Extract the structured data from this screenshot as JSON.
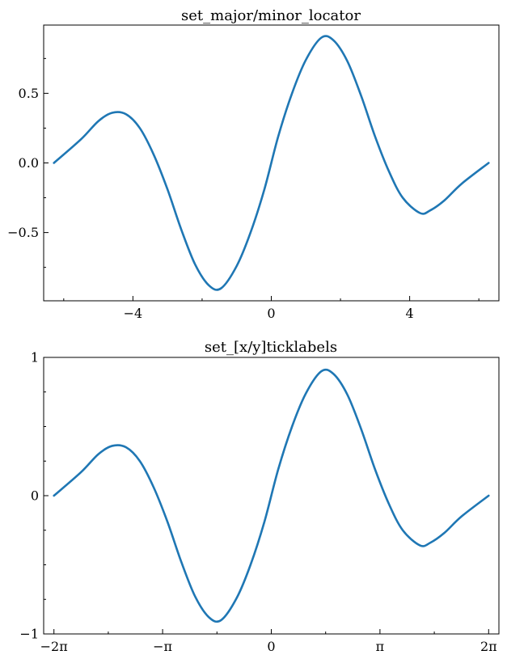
{
  "chart_data": [
    {
      "type": "line",
      "title": "set_major/minor_locator",
      "xlabel": "",
      "ylabel": "",
      "xlim": [
        -6.58,
        6.58
      ],
      "ylim": [
        -0.99,
        0.99
      ],
      "grid": false,
      "xticks_major": [
        {
          "value": -4,
          "label": "−4"
        },
        {
          "value": 0,
          "label": "0"
        },
        {
          "value": 4,
          "label": "4"
        }
      ],
      "xticks_minor": [
        -6,
        -2,
        2,
        6
      ],
      "yticks_major": [
        {
          "value": 0.5,
          "label": "0.5"
        },
        {
          "value": 0.0,
          "label": "0.0"
        },
        {
          "value": -0.5,
          "label": "−0.5"
        }
      ],
      "yticks_minor": [
        0.75,
        0.25,
        -0.25,
        -0.75
      ],
      "series": [
        {
          "color": "#1f77b4",
          "x": [
            -6.283,
            -5.5,
            -5.0,
            -4.6,
            -4.2,
            -3.8,
            -3.4,
            -3.0,
            -2.6,
            -2.2,
            -1.8,
            -1.45,
            -1.0,
            -0.6,
            -0.2,
            0.2,
            0.6,
            1.0,
            1.45,
            1.8,
            2.2,
            2.6,
            3.0,
            3.4,
            3.8,
            4.3,
            4.6,
            5.0,
            5.5,
            6.283
          ],
          "y": [
            0.0,
            0.17,
            0.3,
            0.36,
            0.35,
            0.25,
            0.06,
            -0.19,
            -0.48,
            -0.73,
            -0.88,
            -0.9,
            -0.74,
            -0.5,
            -0.19,
            0.19,
            0.5,
            0.74,
            0.9,
            0.88,
            0.73,
            0.48,
            0.19,
            -0.06,
            -0.25,
            -0.36,
            -0.34,
            -0.27,
            -0.15,
            0.0
          ]
        }
      ]
    },
    {
      "type": "line",
      "title": "set_[x/y]ticklabels",
      "xlabel": "",
      "ylabel": "",
      "xlim": [
        -6.58,
        6.58
      ],
      "ylim": [
        -1,
        1
      ],
      "grid": false,
      "xticks_major": [
        {
          "value": -6.283,
          "label": "−2π"
        },
        {
          "value": -3.1416,
          "label": "−π"
        },
        {
          "value": 0,
          "label": "0"
        },
        {
          "value": 3.1416,
          "label": "π"
        },
        {
          "value": 6.283,
          "label": "2π"
        }
      ],
      "xticks_minor": [
        -4.712,
        -1.571,
        1.571,
        4.712
      ],
      "yticks_major": [
        {
          "value": 1,
          "label": "1"
        },
        {
          "value": 0,
          "label": "0"
        },
        {
          "value": -1,
          "label": "−1"
        }
      ],
      "yticks_minor": [
        0.75,
        0.5,
        0.25,
        -0.25,
        -0.5,
        -0.75
      ],
      "series": [
        {
          "color": "#1f77b4",
          "x": [
            -6.283,
            -5.5,
            -5.0,
            -4.6,
            -4.2,
            -3.8,
            -3.4,
            -3.0,
            -2.6,
            -2.2,
            -1.8,
            -1.45,
            -1.0,
            -0.6,
            -0.2,
            0.2,
            0.6,
            1.0,
            1.45,
            1.8,
            2.2,
            2.6,
            3.0,
            3.4,
            3.8,
            4.3,
            4.6,
            5.0,
            5.5,
            6.283
          ],
          "y": [
            0.0,
            0.17,
            0.3,
            0.36,
            0.35,
            0.25,
            0.06,
            -0.19,
            -0.48,
            -0.73,
            -0.88,
            -0.9,
            -0.74,
            -0.5,
            -0.19,
            0.19,
            0.5,
            0.74,
            0.9,
            0.88,
            0.73,
            0.48,
            0.19,
            -0.06,
            -0.25,
            -0.36,
            -0.34,
            -0.27,
            -0.15,
            0.0
          ]
        }
      ]
    }
  ]
}
